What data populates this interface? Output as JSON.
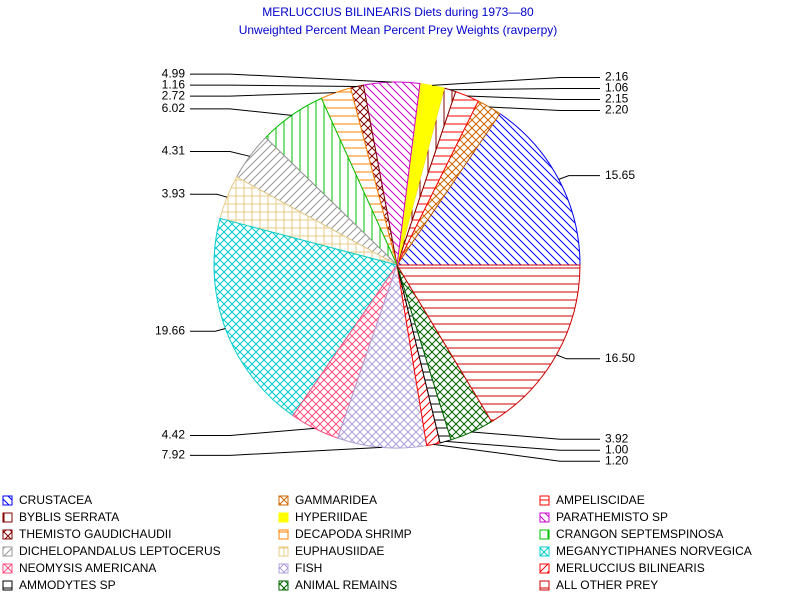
{
  "chart_data": {
    "type": "pie",
    "title": "MERLUCCIUS BILINEARIS Diets during 1973—80",
    "subtitle": "Unweighted Percent Mean Percent Prey  Weights (ravperpy)",
    "categories": [
      "CRUSTACEA",
      "GAMMARIDEA",
      "AMPELISCIDAE",
      "BYBLIS SERRATA",
      "HYPERIIDAE",
      "PARATHEMISTO SP",
      "THEMISTO GAUDICHAUDII",
      "DECAPODA SHRIMP",
      "CRANGON SEPTEMSPINOSA",
      "DICHELOPANDALUS LEPTOCERUS",
      "EUPHAUSIIDAE",
      "MEGANYCTIPHANES NORVEGICA",
      "NEOMYSIS AMERICANA",
      "FISH",
      "MERLUCCIUS BILINEARIS",
      "AMMODYTES SP",
      "ANIMAL REMAINS",
      "ALL OTHER PREY"
    ],
    "values": [
      15.65,
      2.2,
      2.15,
      1.06,
      2.16,
      4.99,
      1.16,
      2.72,
      6.02,
      4.31,
      3.93,
      19.66,
      4.42,
      7.92,
      1.2,
      1.0,
      3.92,
      16.5
    ],
    "value_labels": [
      "15.65",
      "2.20",
      "2.15",
      "1.06",
      "2.16",
      "4.99",
      "1.16",
      "2.72",
      "6.02",
      "4.31",
      "3.93",
      "19.66",
      "4.42",
      "7.92",
      "1.20",
      "1.00",
      "3.92",
      "16.50"
    ],
    "colors": [
      "#0000ff",
      "#cc6600",
      "#ff0000",
      "#800000",
      "#ffff00",
      "#cc00cc",
      "#800000",
      "#ff8000",
      "#00c000",
      "#999999",
      "#e8cc88",
      "#00cccc",
      "#ff5080",
      "#b0a0d8",
      "#ff0000",
      "#000000",
      "#006600",
      "#cc0000"
    ],
    "hatches": [
      "bdiag",
      "xcross",
      "horiz",
      "vert",
      "solid",
      "bdiag",
      "xcross",
      "horiz",
      "vert",
      "fdiag",
      "grid",
      "xcross",
      "xcross",
      "xcross",
      "fdiag",
      "horiz",
      "xcross",
      "horiz"
    ]
  }
}
